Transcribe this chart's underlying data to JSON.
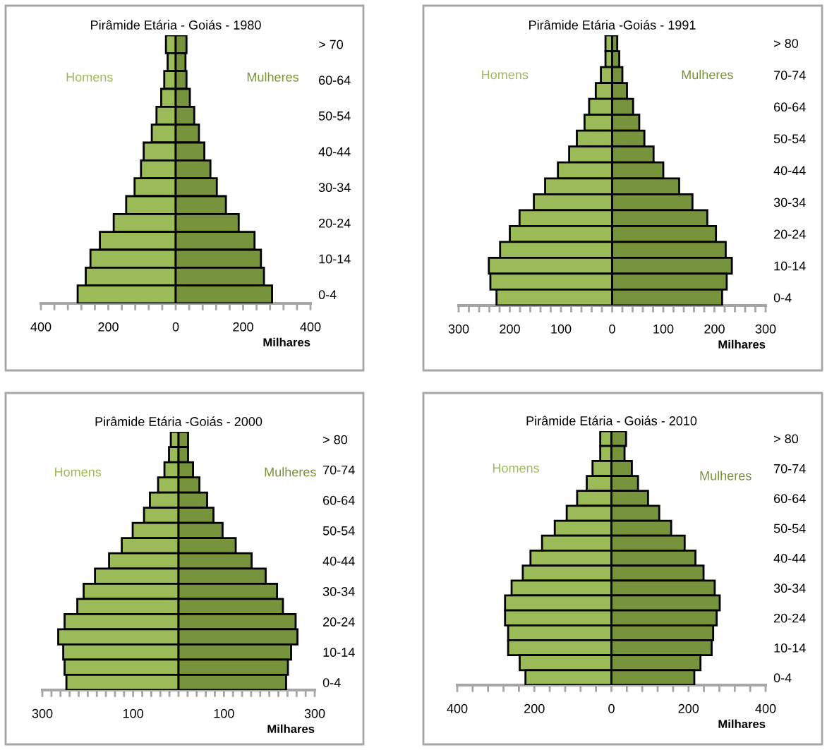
{
  "chart_data": [
    {
      "type": "bar",
      "orientation": "horizontal",
      "stacked": true,
      "title": "Pirâmide Etária - Goiás - 1980",
      "xlabel": "Milhares",
      "categories": [
        "> 70",
        null,
        "60-64",
        null,
        "50-54",
        null,
        "40-44",
        null,
        "30-34",
        null,
        "20-24",
        null,
        "10-14",
        null,
        "0-4"
      ],
      "series": [
        {
          "name": "Homens",
          "color": "#9bbb59",
          "values": [
            -29,
            -24,
            -34,
            -43,
            -57,
            -71,
            -95,
            -103,
            -122,
            -147,
            -184,
            -225,
            -253,
            -267,
            -291
          ]
        },
        {
          "name": "Mulheres",
          "color": "#77933c",
          "values": [
            32,
            29,
            32,
            42,
            55,
            69,
            85,
            103,
            122,
            149,
            187,
            234,
            253,
            262,
            286
          ]
        }
      ],
      "xlim": [
        -400,
        400
      ],
      "xticks": [
        {
          "value": -400,
          "label": "400"
        },
        {
          "value": -360,
          "label": null
        },
        {
          "value": -320,
          "label": null
        },
        {
          "value": -280,
          "label": null
        },
        {
          "value": -240,
          "label": null
        },
        {
          "value": -200,
          "label": "200"
        },
        {
          "value": -160,
          "label": null
        },
        {
          "value": -120,
          "label": null
        },
        {
          "value": -80,
          "label": null
        },
        {
          "value": -40,
          "label": null
        },
        0,
        {
          "value": 40,
          "label": null
        },
        {
          "value": 80,
          "label": null
        },
        {
          "value": 120,
          "label": null
        },
        {
          "value": 160,
          "label": null
        },
        200,
        {
          "value": 240,
          "label": null
        },
        {
          "value": 280,
          "label": null
        },
        {
          "value": 320,
          "label": null
        },
        {
          "value": 360,
          "label": null
        },
        400
      ],
      "grid": false,
      "legend": false
    },
    {
      "type": "bar",
      "orientation": "horizontal",
      "stacked": true,
      "title": "Pirâmide Etária -Goiás - 1991",
      "xlabel": "Milhares",
      "categories": [
        "> 80",
        null,
        "70-74",
        null,
        "60-64",
        null,
        "50-54",
        null,
        "40-44",
        null,
        "30-34",
        null,
        "20-24",
        null,
        "10-14",
        null,
        "0-4"
      ],
      "series": [
        {
          "name": "Homens",
          "color": "#9bbb59",
          "values": [
            -13,
            -13,
            -22,
            -32,
            -45,
            -54,
            -69,
            -84,
            -106,
            -131,
            -153,
            -181,
            -200,
            -219,
            -241,
            -238,
            -226
          ]
        },
        {
          "name": "Mulheres",
          "color": "#77933c",
          "values": [
            10,
            14,
            20,
            29,
            41,
            53,
            63,
            81,
            100,
            131,
            157,
            186,
            203,
            222,
            234,
            224,
            215
          ]
        }
      ],
      "xlim": [
        -300,
        300
      ],
      "xticks": [
        {
          "value": -300,
          "label": "300"
        },
        {
          "value": -280,
          "label": null
        },
        {
          "value": -260,
          "label": null
        },
        {
          "value": -240,
          "label": null
        },
        {
          "value": -220,
          "label": null
        },
        {
          "value": -200,
          "label": "200"
        },
        {
          "value": -180,
          "label": null
        },
        {
          "value": -160,
          "label": null
        },
        {
          "value": -140,
          "label": null
        },
        {
          "value": -120,
          "label": null
        },
        {
          "value": -100,
          "label": "100"
        },
        {
          "value": -80,
          "label": null
        },
        {
          "value": -60,
          "label": null
        },
        {
          "value": -40,
          "label": null
        },
        {
          "value": -20,
          "label": null
        },
        0,
        {
          "value": 20,
          "label": null
        },
        {
          "value": 40,
          "label": null
        },
        {
          "value": 60,
          "label": null
        },
        {
          "value": 80,
          "label": null
        },
        100,
        {
          "value": 120,
          "label": null
        },
        {
          "value": 140,
          "label": null
        },
        {
          "value": 160,
          "label": null
        },
        {
          "value": 180,
          "label": null
        },
        200,
        {
          "value": 220,
          "label": null
        },
        {
          "value": 240,
          "label": null
        },
        {
          "value": 260,
          "label": null
        },
        {
          "value": 280,
          "label": null
        },
        300
      ],
      "grid": false,
      "legend": false
    },
    {
      "type": "bar",
      "orientation": "horizontal",
      "stacked": true,
      "title": "Pirâmide Etária -Goiás - 2000",
      "xlabel": "Milhares",
      "categories": [
        "> 80",
        null,
        "70-74",
        null,
        "60-64",
        null,
        "50-54",
        null,
        "40-44",
        null,
        "30-34",
        null,
        "20-24",
        null,
        "10-14",
        null,
        "0-4"
      ],
      "series": [
        {
          "name": "Homens",
          "color": "#9bbb59",
          "values": [
            -17,
            -21,
            -31,
            -45,
            -63,
            -76,
            -101,
            -125,
            -153,
            -184,
            -209,
            -223,
            -251,
            -265,
            -254,
            -251,
            -247
          ]
        },
        {
          "name": "Mulheres",
          "color": "#77933c",
          "values": [
            21,
            21,
            32,
            46,
            63,
            77,
            97,
            126,
            161,
            192,
            217,
            230,
            258,
            262,
            248,
            241,
            237
          ]
        }
      ],
      "xlim": [
        -300,
        300
      ],
      "xticks": [
        {
          "value": -300,
          "label": "300"
        },
        {
          "value": -280,
          "label": null
        },
        {
          "value": -260,
          "label": null
        },
        {
          "value": -240,
          "label": null
        },
        {
          "value": -220,
          "label": null
        },
        {
          "value": -200,
          "label": null
        },
        {
          "value": -180,
          "label": null
        },
        {
          "value": -160,
          "label": null
        },
        {
          "value": -140,
          "label": null
        },
        {
          "value": -120,
          "label": null
        },
        {
          "value": -100,
          "label": "100"
        },
        {
          "value": -80,
          "label": null
        },
        {
          "value": -60,
          "label": null
        },
        {
          "value": -40,
          "label": null
        },
        {
          "value": -20,
          "label": null
        },
        {
          "value": 0,
          "label": null
        },
        {
          "value": 20,
          "label": null
        },
        {
          "value": 40,
          "label": null
        },
        {
          "value": 60,
          "label": null
        },
        {
          "value": 80,
          "label": null
        },
        100,
        {
          "value": 120,
          "label": null
        },
        {
          "value": 140,
          "label": null
        },
        {
          "value": 160,
          "label": null
        },
        {
          "value": 180,
          "label": null
        },
        {
          "value": 200,
          "label": null
        },
        {
          "value": 220,
          "label": null
        },
        {
          "value": 240,
          "label": null
        },
        {
          "value": 260,
          "label": null
        },
        {
          "value": 280,
          "label": null
        },
        300
      ],
      "grid": false,
      "legend": false
    },
    {
      "type": "bar",
      "orientation": "horizontal",
      "stacked": true,
      "title": "Pirâmide Etária - Goiás - 2010",
      "xlabel": "Milhares",
      "categories": [
        "> 80",
        null,
        "70-74",
        null,
        "60-64",
        null,
        "50-54",
        null,
        "40-44",
        null,
        "30-34",
        null,
        "20-24",
        null,
        "10-14",
        null,
        "0-4"
      ],
      "series": [
        {
          "name": "Homens",
          "color": "#9bbb59",
          "values": [
            -29,
            -29,
            -49,
            -64,
            -89,
            -116,
            -147,
            -180,
            -210,
            -230,
            -259,
            -276,
            -276,
            -268,
            -268,
            -238,
            -223
          ]
        },
        {
          "name": "Mulheres",
          "color": "#77933c",
          "values": [
            38,
            34,
            53,
            69,
            95,
            124,
            155,
            190,
            218,
            239,
            268,
            281,
            273,
            264,
            260,
            231,
            215
          ]
        }
      ],
      "xlim": [
        -400,
        400
      ],
      "xticks": [
        {
          "value": -400,
          "label": "400"
        },
        {
          "value": -360,
          "label": null
        },
        {
          "value": -320,
          "label": null
        },
        {
          "value": -280,
          "label": null
        },
        {
          "value": -240,
          "label": null
        },
        {
          "value": -200,
          "label": "200"
        },
        {
          "value": -160,
          "label": null
        },
        {
          "value": -120,
          "label": null
        },
        {
          "value": -80,
          "label": null
        },
        {
          "value": -40,
          "label": null
        },
        0,
        {
          "value": 40,
          "label": null
        },
        {
          "value": 80,
          "label": null
        },
        {
          "value": 120,
          "label": null
        },
        {
          "value": 160,
          "label": null
        },
        200,
        {
          "value": 240,
          "label": null
        },
        {
          "value": 280,
          "label": null
        },
        {
          "value": 320,
          "label": null
        },
        {
          "value": 360,
          "label": null
        },
        400
      ],
      "grid": false,
      "legend": false
    }
  ]
}
